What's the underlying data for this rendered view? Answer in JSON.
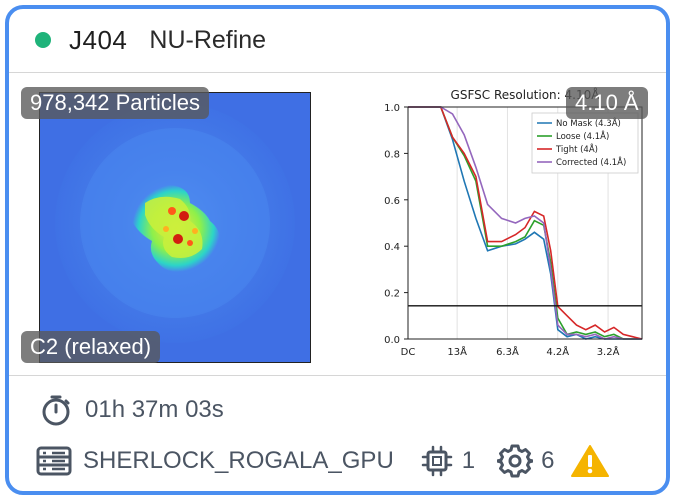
{
  "job": {
    "status_color": "#1fb37a",
    "id": "J404",
    "type": "NU-Refine"
  },
  "map": {
    "particles_label": "978,342 Particles",
    "symmetry_label": "C2 (relaxed)"
  },
  "fsc": {
    "resolution_badge": "4.10 Å",
    "title": "GSFSC Resolution: 4.10Å",
    "threshold": 0.143
  },
  "chart_data": {
    "type": "line",
    "title": "GSFSC Resolution: 4.10Å",
    "xlabel": "",
    "ylabel": "",
    "ylim": [
      0,
      1.0
    ],
    "x_tick_labels": [
      "DC",
      "13Å",
      "6.3Å",
      "4.2Å",
      "3.2Å"
    ],
    "y_tick_labels": [
      "0.0",
      "0.2",
      "0.4",
      "0.6",
      "0.8",
      "1.0"
    ],
    "legend_position": "top-right",
    "grid": true,
    "x_index": [
      0.0,
      0.07,
      0.14,
      0.19,
      0.24,
      0.29,
      0.34,
      0.4,
      0.46,
      0.5,
      0.54,
      0.58,
      0.61,
      0.64,
      0.68,
      0.72,
      0.76,
      0.8,
      0.84,
      0.88,
      0.92,
      0.96,
      1.0
    ],
    "series": [
      {
        "name": "No Mask (4.3Å)",
        "color": "#1f77b4",
        "values": [
          1.0,
          1.0,
          1.0,
          0.86,
          0.68,
          0.52,
          0.38,
          0.4,
          0.41,
          0.43,
          0.46,
          0.43,
          0.28,
          0.04,
          0.01,
          0.02,
          0.0,
          0.01,
          0.0,
          0.0,
          0.0,
          0.0,
          0.0
        ]
      },
      {
        "name": "Loose (4.1Å)",
        "color": "#2ca02c",
        "values": [
          1.0,
          1.0,
          1.0,
          0.87,
          0.79,
          0.68,
          0.4,
          0.4,
          0.42,
          0.44,
          0.51,
          0.49,
          0.33,
          0.09,
          0.02,
          0.03,
          0.02,
          0.03,
          0.01,
          0.02,
          0.0,
          0.0,
          0.0
        ]
      },
      {
        "name": "Tight (4Å)",
        "color": "#d62728",
        "values": [
          1.0,
          1.0,
          1.0,
          0.87,
          0.8,
          0.7,
          0.42,
          0.42,
          0.45,
          0.48,
          0.55,
          0.53,
          0.38,
          0.14,
          0.1,
          0.06,
          0.04,
          0.06,
          0.03,
          0.05,
          0.02,
          0.01,
          0.0
        ]
      },
      {
        "name": "Corrected (4.1Å)",
        "color": "#9467bd",
        "values": [
          1.0,
          1.0,
          1.0,
          0.97,
          0.88,
          0.74,
          0.58,
          0.52,
          0.5,
          0.52,
          0.53,
          0.5,
          0.3,
          0.06,
          0.02,
          0.02,
          0.01,
          0.02,
          0.0,
          0.01,
          0.0,
          0.0,
          0.0
        ]
      }
    ]
  },
  "footer": {
    "elapsed": "01h 37m 03s",
    "lane": "SHERLOCK_ROGALA_GPU",
    "gpu_count": "1",
    "cpu_count": "6",
    "icons": [
      "stopwatch-icon",
      "server-icon",
      "chip-icon",
      "gear-icon",
      "warning-icon"
    ],
    "warning_color": "#f5b400"
  }
}
